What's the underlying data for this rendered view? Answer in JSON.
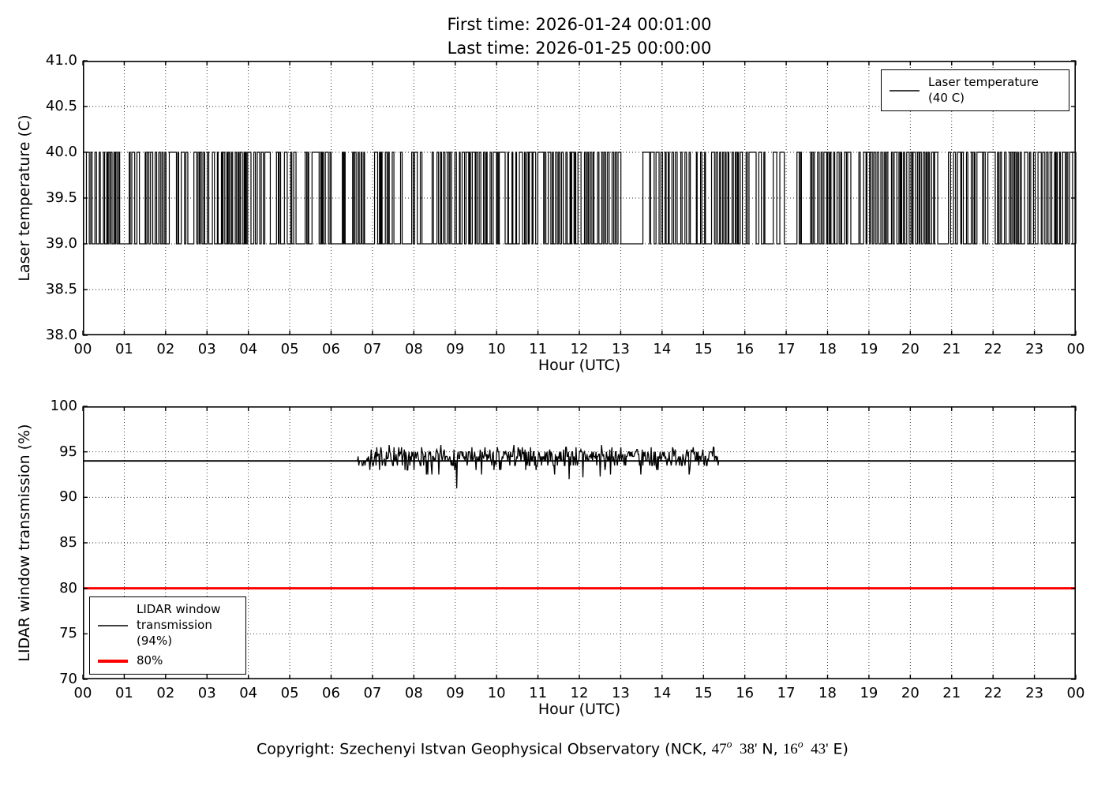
{
  "header": {
    "line1": "First time: 2026-01-24 00:01:00",
    "line2": "Last time: 2026-01-25 00:00:00"
  },
  "colors": {
    "data_line": "#000000",
    "reference_red": "#ff0000",
    "background": "#ffffff"
  },
  "footer": {
    "prefix": "Copyright: Szechenyi Istvan Geophysical Observatory (NCK, ",
    "lat_deg": "47",
    "lat_sup": "o",
    "lat_min": "  38'",
    "lat_dir": " N, ",
    "lon_deg": "16",
    "lon_sup": "o",
    "lon_min": "  43'",
    "lon_dir": " E)"
  },
  "chart_data": [
    {
      "type": "line",
      "title": "First time: 2026-01-24 00:01:00\nLast time: 2026-01-25 00:00:00",
      "xlabel": "Hour (UTC)",
      "ylabel": "Laser temperature (C)",
      "xlim": [
        0,
        24
      ],
      "ylim": [
        38.0,
        41.0
      ],
      "xticks": [
        "00",
        "01",
        "02",
        "03",
        "04",
        "05",
        "06",
        "07",
        "08",
        "09",
        "10",
        "11",
        "12",
        "13",
        "14",
        "15",
        "16",
        "17",
        "18",
        "19",
        "20",
        "21",
        "22",
        "23",
        "00"
      ],
      "yticks": [
        "41.0",
        "40.5",
        "40.0",
        "39.5",
        "39.0",
        "38.5",
        "38.0"
      ],
      "ytick_values": [
        41.0,
        40.5,
        40.0,
        39.5,
        39.0,
        38.5,
        38.0
      ],
      "grid": true,
      "legend_position": "upper right",
      "legend": [
        {
          "label": "Laser temperature\n(40 C)",
          "color": "#000000"
        }
      ],
      "series": [
        {
          "name": "laser_temperature",
          "description": "Thermostat-style square wave toggling between 39 C and 40 C every few minutes for the whole day",
          "pattern": "square_wave",
          "color": "#000000",
          "width": 1.2,
          "low": 39.0,
          "high": 40.0,
          "start_hour": 0.0167,
          "end_hour": 24,
          "sample_minutes": 1,
          "seed": 42,
          "quiet_intervals_at_low": [
            [
              0.92,
              1.12
            ],
            [
              4.47,
              4.68
            ],
            [
              5.98,
              6.27
            ],
            [
              6.33,
              6.52
            ],
            [
              13.26,
              13.4
            ],
            [
              16.88,
              17.26
            ]
          ]
        }
      ]
    },
    {
      "type": "line",
      "xlabel": "Hour (UTC)",
      "ylabel": "LIDAR window transmission (%)",
      "xlim": [
        0,
        24
      ],
      "ylim": [
        70,
        100
      ],
      "xticks": [
        "00",
        "01",
        "02",
        "03",
        "04",
        "05",
        "06",
        "07",
        "08",
        "09",
        "10",
        "11",
        "12",
        "13",
        "14",
        "15",
        "16",
        "17",
        "18",
        "19",
        "20",
        "21",
        "22",
        "23",
        "00"
      ],
      "yticks": [
        "100",
        "95",
        "90",
        "85",
        "80",
        "75",
        "70"
      ],
      "ytick_values": [
        100,
        95,
        90,
        85,
        80,
        75,
        70
      ],
      "grid": true,
      "legend_position": "lower left",
      "legend": [
        {
          "label": "LIDAR window\ntransmission\n(94%)",
          "color": "#000000"
        },
        {
          "label": "80%",
          "color": "#ff0000"
        }
      ],
      "reference_lines": [
        {
          "name": "nominal_transmission",
          "value": 94,
          "color": "#000000",
          "width": 1.8
        },
        {
          "name": "threshold_80_percent",
          "value": 80,
          "color": "#ff0000",
          "width": 3
        }
      ],
      "series": [
        {
          "name": "window_transmission",
          "description": "Noisy transmission measurements around 94-95% during daylight hours only",
          "pattern": "noisy",
          "color": "#000000",
          "width": 1.3,
          "baseline": 94,
          "noise_low": 92.5,
          "noise_high": 95.75,
          "start_hour": 6.62,
          "end_hour": 15.42,
          "sample_minutes": 1,
          "seed": 7,
          "dips": [
            [
              9.03,
              91.0
            ],
            [
              11.75,
              92.0
            ],
            [
              12.08,
              92.2
            ],
            [
              12.5,
              92.3
            ]
          ]
        }
      ]
    }
  ]
}
